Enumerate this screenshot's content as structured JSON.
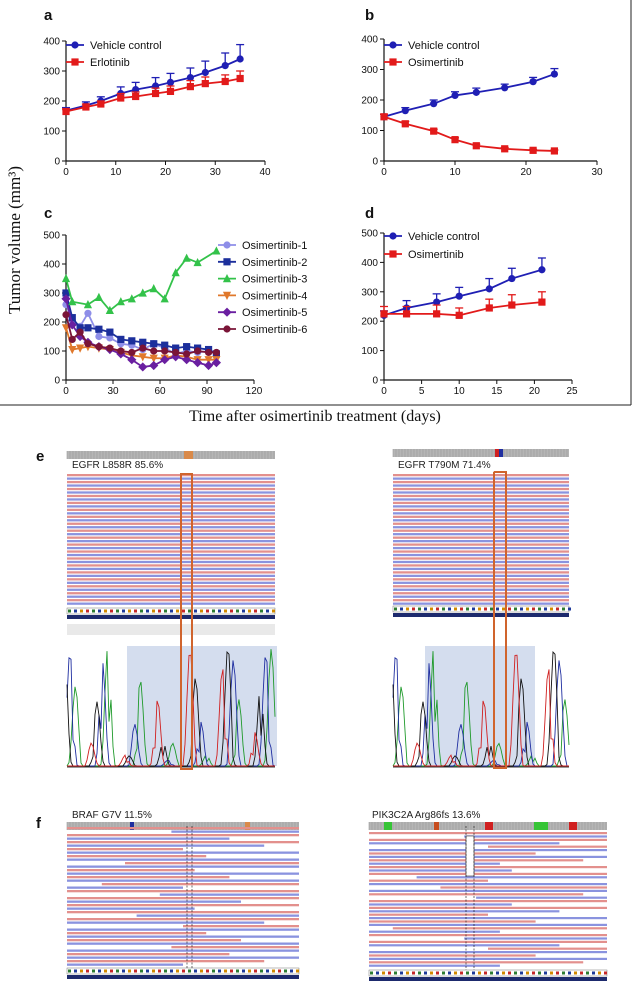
{
  "figure": {
    "y_label": "Tumor volume (mm³)",
    "x_label": "Time  after osimertinib treatment (days)",
    "panel_e_letter": "e",
    "panel_f_letter": "f",
    "seq_panels": [
      {
        "letter": "",
        "title": "EGFR L858R 85.6%"
      },
      {
        "letter": "",
        "title": "EGFR T790M 71.4%"
      },
      {
        "letter": "",
        "title": "BRAF G7V 11.5%"
      },
      {
        "letter": "",
        "title": "PIK3C2A Arg86fs 13.6%"
      }
    ]
  },
  "colors": {
    "vehicle": "#1f1fb4",
    "treat": "#e21a1a",
    "osi1": "#8e8ee8",
    "osi2": "#1c2f9c",
    "osi3": "#33c24a",
    "osi4": "#e0782b",
    "osi5": "#6a1fa0",
    "osi6": "#7a1437",
    "read_red": "#e3908d",
    "read_blue": "#8a93df"
  },
  "chart_data": [
    {
      "letter": "a",
      "type": "line",
      "xlim": [
        0,
        40
      ],
      "ylim": [
        0,
        400
      ],
      "xticks": [
        0,
        10,
        20,
        30,
        40
      ],
      "yticks": [
        0,
        100,
        200,
        300,
        400
      ],
      "legend_position": "top-left",
      "series": [
        {
          "name": "Vehicle control",
          "color": "#1f1fb4",
          "marker": "circle",
          "x": [
            0,
            4,
            7,
            11,
            14,
            18,
            21,
            25,
            28,
            32,
            35
          ],
          "y": [
            168,
            185,
            200,
            225,
            238,
            250,
            262,
            278,
            295,
            318,
            340
          ],
          "err": [
            10,
            12,
            14,
            22,
            24,
            28,
            30,
            32,
            38,
            42,
            48
          ]
        },
        {
          "name": "Erlotinib",
          "color": "#e21a1a",
          "marker": "square",
          "x": [
            0,
            4,
            7,
            11,
            14,
            18,
            21,
            25,
            28,
            32,
            35
          ],
          "y": [
            165,
            180,
            190,
            210,
            215,
            225,
            232,
            248,
            258,
            265,
            275
          ],
          "err": [
            8,
            10,
            10,
            15,
            15,
            18,
            18,
            20,
            22,
            22,
            25
          ]
        }
      ]
    },
    {
      "letter": "b",
      "type": "line",
      "xlim": [
        0,
        30
      ],
      "ylim": [
        0,
        400
      ],
      "xticks": [
        0,
        10,
        20,
        30
      ],
      "yticks": [
        0,
        100,
        200,
        300,
        400
      ],
      "legend_position": "top-left",
      "series": [
        {
          "name": "Vehicle control",
          "color": "#1f1fb4",
          "marker": "circle",
          "x": [
            0,
            3,
            7,
            10,
            13,
            17,
            21,
            24
          ],
          "y": [
            145,
            165,
            188,
            215,
            225,
            240,
            260,
            285
          ],
          "err": [
            8,
            10,
            12,
            12,
            14,
            12,
            14,
            18
          ]
        },
        {
          "name": "Osimertinib",
          "color": "#e21a1a",
          "marker": "square",
          "x": [
            0,
            3,
            7,
            10,
            13,
            17,
            21,
            24
          ],
          "y": [
            145,
            122,
            98,
            70,
            50,
            40,
            35,
            33
          ],
          "err": [
            8,
            8,
            6,
            6,
            5,
            4,
            3,
            3
          ]
        }
      ]
    },
    {
      "letter": "c",
      "type": "line",
      "xlim": [
        0,
        120
      ],
      "ylim": [
        0,
        500
      ],
      "xticks": [
        0,
        30,
        60,
        90,
        120
      ],
      "yticks": [
        0,
        100,
        200,
        300,
        400,
        500
      ],
      "legend_position": "top-right",
      "series": [
        {
          "name": "Osimertinib-1",
          "color": "#8e8ee8",
          "marker": "circle",
          "x": [
            0,
            4,
            9,
            14,
            21,
            28,
            35,
            42,
            49,
            56,
            63,
            70,
            77,
            84,
            91,
            96
          ],
          "y": [
            260,
            205,
            185,
            230,
            150,
            145,
            125,
            120,
            105,
            125,
            110,
            90,
            100,
            95,
            100,
            95
          ]
        },
        {
          "name": "Osimertinib-2",
          "color": "#1c2f9c",
          "marker": "square",
          "x": [
            0,
            4,
            9,
            14,
            21,
            28,
            35,
            42,
            49,
            56,
            63,
            70,
            77,
            84,
            91,
            96
          ],
          "y": [
            300,
            215,
            180,
            180,
            175,
            165,
            140,
            135,
            130,
            125,
            120,
            110,
            115,
            110,
            105,
            90
          ]
        },
        {
          "name": "Osimertinib-3",
          "color": "#33c24a",
          "marker": "triangle",
          "x": [
            0,
            4,
            14,
            21,
            28,
            35,
            42,
            49,
            56,
            63,
            70,
            77,
            84,
            96
          ],
          "y": [
            350,
            270,
            260,
            285,
            240,
            270,
            280,
            300,
            315,
            280,
            370,
            420,
            405,
            445
          ]
        },
        {
          "name": "Osimertinib-4",
          "color": "#e0782b",
          "marker": "triangle-down",
          "x": [
            0,
            4,
            9,
            14,
            21,
            28,
            35,
            42,
            49,
            56,
            63,
            70,
            77,
            84,
            91,
            96
          ],
          "y": [
            180,
            105,
            110,
            115,
            110,
            105,
            95,
            85,
            80,
            75,
            75,
            85,
            80,
            70,
            70,
            70
          ]
        },
        {
          "name": "Osimertinib-5",
          "color": "#6a1fa0",
          "marker": "diamond",
          "x": [
            0,
            4,
            9,
            14,
            21,
            28,
            35,
            42,
            49,
            56,
            63,
            70,
            77,
            84,
            91,
            96
          ],
          "y": [
            280,
            190,
            150,
            130,
            115,
            105,
            90,
            70,
            45,
            50,
            70,
            80,
            70,
            60,
            50,
            60
          ]
        },
        {
          "name": "Osimertinib-6",
          "color": "#7a1437",
          "marker": "circle",
          "x": [
            0,
            4,
            9,
            14,
            21,
            28,
            35,
            42,
            49,
            56,
            63,
            70,
            77,
            84,
            91,
            96
          ],
          "y": [
            225,
            140,
            165,
            125,
            115,
            110,
            100,
            95,
            110,
            100,
            100,
            95,
            90,
            100,
            95,
            95
          ]
        }
      ]
    },
    {
      "letter": "d",
      "type": "line",
      "xlim": [
        0,
        25
      ],
      "ylim": [
        0,
        500
      ],
      "xticks": [
        0,
        5,
        10,
        15,
        20,
        25
      ],
      "yticks": [
        0,
        100,
        200,
        300,
        400,
        500
      ],
      "legend_position": "top-left",
      "series": [
        {
          "name": "Vehicle control",
          "color": "#1f1fb4",
          "marker": "circle",
          "x": [
            0,
            3,
            7,
            10,
            14,
            17,
            21
          ],
          "y": [
            220,
            245,
            265,
            285,
            310,
            345,
            375
          ],
          "err": [
            15,
            25,
            28,
            30,
            35,
            35,
            40
          ]
        },
        {
          "name": "Osimertinib",
          "color": "#e21a1a",
          "marker": "square",
          "x": [
            0,
            3,
            7,
            10,
            14,
            17,
            21
          ],
          "y": [
            225,
            225,
            225,
            220,
            245,
            255,
            265
          ],
          "err": [
            25,
            25,
            30,
            25,
            30,
            35,
            35
          ]
        }
      ]
    }
  ]
}
